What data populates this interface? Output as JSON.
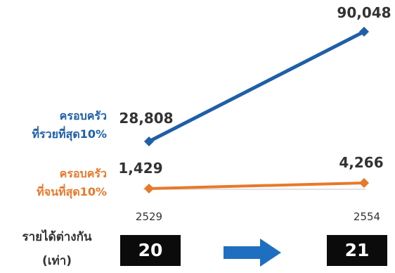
{
  "chart_data": {
    "type": "line",
    "x": [
      "2529",
      "2554"
    ],
    "series": [
      {
        "name": "ครอบครัว ที่รวยที่สุด10%",
        "values": [
          28808,
          90048
        ],
        "value_labels": [
          "28,808",
          "90,048"
        ],
        "color": "#1f5fa8"
      },
      {
        "name": "ครอบครัว ที่จนที่สุด10%",
        "values": [
          1429,
          4266
        ],
        "value_labels": [
          "1,429",
          "4,266"
        ],
        "color": "#e8782a"
      }
    ],
    "legend": {
      "rich_line1": "ครอบครัว",
      "rich_line2": "ที่รวยที่สุด10%",
      "poor_line1": "ครอบครัว",
      "poor_line2": "ที่จนที่สุด10%"
    },
    "ratio": {
      "label_line1": "รายได้ต่างกัน",
      "label_line2": "(เท่า)",
      "start": "20",
      "end": "21"
    },
    "grid": false,
    "axis_line_color": "#d9d9d9",
    "arrow_color": "#1f6fc0"
  }
}
